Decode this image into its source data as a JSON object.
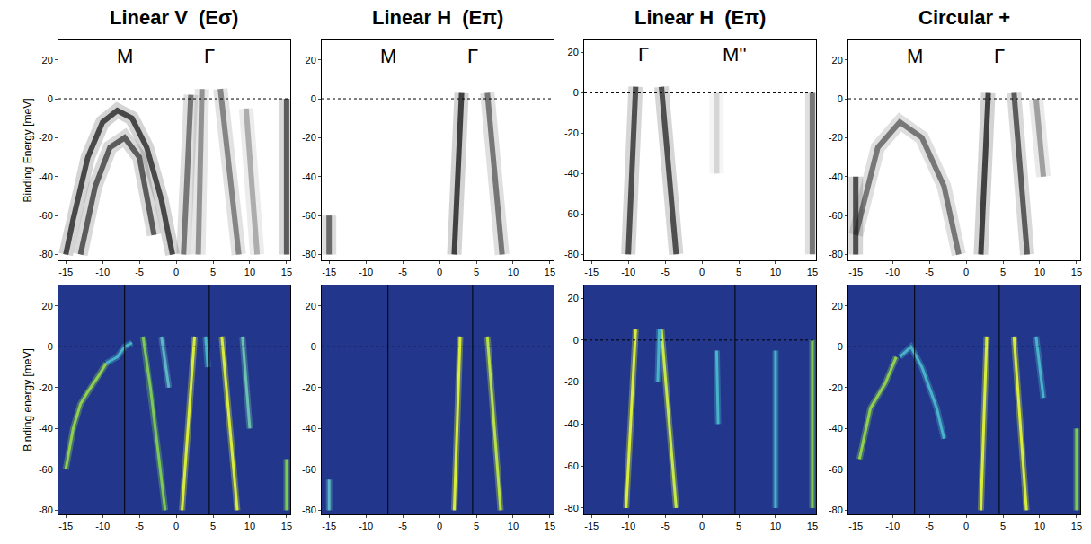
{
  "chart_data": [
    {
      "type": "intensity",
      "title": "Linear V  (Eσ)",
      "y_label": "Binding Energy [meV]",
      "xlim": [
        -16,
        15.5
      ],
      "xticks": [
        -15,
        -10,
        -5,
        0,
        5,
        10,
        15
      ],
      "ylim": [
        -83,
        30
      ],
      "yticks": [
        -80,
        -60,
        -40,
        -20,
        0,
        20
      ],
      "grid": false,
      "hlines": [
        0
      ],
      "annotations": [
        {
          "text": "M",
          "x": -7,
          "y": 22
        },
        {
          "text": "Γ",
          "x": 4.5,
          "y": 22
        }
      ],
      "bands": [
        {
          "x": [
            -15,
            -14,
            -12,
            -10,
            -8,
            -6,
            -4,
            -2,
            -0.5
          ],
          "y": [
            -80,
            -62,
            -30,
            -12,
            -6,
            -10,
            -25,
            -52,
            -80
          ],
          "color": "#1a1a1a"
        },
        {
          "x": [
            -13,
            -11,
            -9,
            -7,
            -5,
            -3
          ],
          "y": [
            -80,
            -45,
            -25,
            -20,
            -30,
            -70
          ],
          "color": "#333333"
        },
        {
          "x": [
            1,
            2
          ],
          "y": [
            -80,
            2
          ],
          "color": "#555555"
        },
        {
          "x": [
            3,
            3.5
          ],
          "y": [
            -80,
            5
          ],
          "color": "#777777"
        },
        {
          "x": [
            6,
            8.5
          ],
          "y": [
            5,
            -80
          ],
          "color": "#666666"
        },
        {
          "x": [
            9.5,
            11
          ],
          "y": [
            -5,
            -80
          ],
          "color": "#999999"
        },
        {
          "x": [
            15,
            15
          ],
          "y": [
            -80,
            0
          ],
          "color": "#333333"
        }
      ]
    },
    {
      "type": "intensity",
      "title": "Linear H  (Eπ)",
      "xlim": [
        -16,
        15.5
      ],
      "xticks": [
        -15,
        -10,
        -5,
        0,
        5,
        10,
        15
      ],
      "ylim": [
        -83,
        30
      ],
      "yticks": [
        -80,
        -60,
        -40,
        -20,
        0,
        20
      ],
      "grid": false,
      "hlines": [
        0
      ],
      "annotations": [
        {
          "text": "M",
          "x": -7,
          "y": 22
        },
        {
          "text": "Γ",
          "x": 4.5,
          "y": 22
        }
      ],
      "bands": [
        {
          "x": [
            2,
            3
          ],
          "y": [
            -80,
            3
          ],
          "color": "#111111"
        },
        {
          "x": [
            8.5,
            6.5
          ],
          "y": [
            -80,
            3
          ],
          "color": "#555555"
        },
        {
          "x": [
            -15,
            -15
          ],
          "y": [
            -80,
            -60
          ],
          "color": "#444444"
        }
      ]
    },
    {
      "type": "intensity",
      "title": "Linear H  (Eπ)",
      "xlim": [
        -16,
        15.5
      ],
      "xticks": [
        -15,
        -10,
        -5,
        0,
        5,
        10,
        15
      ],
      "ylim": [
        -83,
        26
      ],
      "yticks": [
        -80,
        -60,
        -40,
        -20,
        0,
        20
      ],
      "grid": false,
      "hlines": [
        0
      ],
      "annotations": [
        {
          "text": "Γ",
          "x": -8,
          "y": 19
        },
        {
          "text": "M''",
          "x": 4.5,
          "y": 19
        }
      ],
      "bands": [
        {
          "x": [
            -10,
            -9
          ],
          "y": [
            -80,
            3
          ],
          "color": "#222222"
        },
        {
          "x": [
            -3.5,
            -5.5
          ],
          "y": [
            -80,
            3
          ],
          "color": "#222222"
        },
        {
          "x": [
            15,
            15
          ],
          "y": [
            -80,
            0
          ],
          "color": "#555555"
        },
        {
          "x": [
            2,
            2
          ],
          "y": [
            -40,
            0
          ],
          "color": "#cccccc"
        }
      ]
    },
    {
      "type": "intensity",
      "title": "Circular +",
      "xlim": [
        -16,
        15.5
      ],
      "xticks": [
        -15,
        -10,
        -5,
        0,
        5,
        10,
        15
      ],
      "ylim": [
        -83,
        30
      ],
      "yticks": [
        -80,
        -60,
        -40,
        -20,
        0,
        20
      ],
      "grid": false,
      "hlines": [
        0
      ],
      "annotations": [
        {
          "text": "M",
          "x": -7,
          "y": 22
        },
        {
          "text": "Γ",
          "x": 4.5,
          "y": 22
        }
      ],
      "bands": [
        {
          "x": [
            -15,
            -12,
            -9,
            -6,
            -3,
            -1
          ],
          "y": [
            -70,
            -25,
            -12,
            -20,
            -45,
            -80
          ],
          "color": "#555555"
        },
        {
          "x": [
            2,
            3
          ],
          "y": [
            -80,
            3
          ],
          "color": "#111111"
        },
        {
          "x": [
            8.3,
            6.5
          ],
          "y": [
            -80,
            3
          ],
          "color": "#333333"
        },
        {
          "x": [
            -15,
            -15
          ],
          "y": [
            -80,
            -40
          ],
          "color": "#222222"
        },
        {
          "x": [
            9.5,
            10.5
          ],
          "y": [
            0,
            -40
          ],
          "color": "#888888"
        }
      ]
    },
    {
      "type": "curvature",
      "y_label": "Binding energy [meV]",
      "xlim": [
        -16,
        15.5
      ],
      "xticks": [
        -15,
        -10,
        -5,
        0,
        5,
        10,
        15
      ],
      "ylim": [
        -82,
        30
      ],
      "yticks": [
        -80,
        -60,
        -40,
        -20,
        0,
        20
      ],
      "grid": false,
      "hlines": [
        0
      ],
      "vlines": [
        -7,
        4.5
      ],
      "bands": [
        {
          "x": [
            -15,
            -14,
            -13,
            -12,
            -10.5,
            -9.5
          ],
          "y": [
            -60,
            -40,
            -28,
            -22,
            -14,
            -8
          ],
          "color": "#8fd14f"
        },
        {
          "x": [
            -9.5,
            -8,
            -7,
            -6
          ],
          "y": [
            -8,
            -5,
            0,
            2
          ],
          "color": "#49b3c9"
        },
        {
          "x": [
            -4.5,
            -3.5,
            -2.5,
            -1.5
          ],
          "y": [
            5,
            -20,
            -50,
            -80
          ],
          "color": "#7cc958"
        },
        {
          "x": [
            -2,
            -1
          ],
          "y": [
            5,
            -20
          ],
          "color": "#5fb6c7"
        },
        {
          "x": [
            0.8,
            2.5
          ],
          "y": [
            -80,
            5
          ],
          "color": "#d8ec3c"
        },
        {
          "x": [
            4,
            4.3
          ],
          "y": [
            5,
            -10
          ],
          "color": "#49b3c9"
        },
        {
          "x": [
            6.2,
            8.3
          ],
          "y": [
            5,
            -80
          ],
          "color": "#d8ec3c"
        },
        {
          "x": [
            9,
            10
          ],
          "y": [
            5,
            -40
          ],
          "color": "#6cc0b0"
        },
        {
          "x": [
            15,
            15
          ],
          "y": [
            -80,
            -55
          ],
          "color": "#7cc958"
        }
      ]
    },
    {
      "type": "curvature",
      "xlim": [
        -16,
        15.5
      ],
      "xticks": [
        -15,
        -10,
        -5,
        0,
        5,
        10,
        15
      ],
      "ylim": [
        -82,
        30
      ],
      "yticks": [
        -80,
        -60,
        -40,
        -20,
        0,
        20
      ],
      "grid": false,
      "hlines": [
        0
      ],
      "vlines": [
        -7,
        4.5
      ],
      "bands": [
        {
          "x": [
            2,
            2.8
          ],
          "y": [
            -80,
            5
          ],
          "color": "#d8ec3c"
        },
        {
          "x": [
            8.3,
            6.5
          ],
          "y": [
            -80,
            5
          ],
          "color": "#b8e04a"
        },
        {
          "x": [
            -15,
            -15
          ],
          "y": [
            -80,
            -65
          ],
          "color": "#5fb6c7"
        }
      ]
    },
    {
      "type": "curvature",
      "xlim": [
        -16,
        15.5
      ],
      "xticks": [
        -15,
        -10,
        -5,
        0,
        5,
        10,
        15
      ],
      "ylim": [
        -83,
        26
      ],
      "yticks": [
        -80,
        -60,
        -40,
        -20,
        0,
        20
      ],
      "grid": false,
      "hlines": [
        0
      ],
      "vlines": [
        -8,
        4.5
      ],
      "bands": [
        {
          "x": [
            -10.3,
            -9
          ],
          "y": [
            -80,
            5
          ],
          "color": "#d8ec3c"
        },
        {
          "x": [
            -3.5,
            -5.5
          ],
          "y": [
            -80,
            5
          ],
          "color": "#c6e84a"
        },
        {
          "x": [
            -5.8,
            -6
          ],
          "y": [
            5,
            -20
          ],
          "color": "#49b3c9"
        },
        {
          "x": [
            2,
            2.2
          ],
          "y": [
            -5,
            -40
          ],
          "color": "#49b3c9"
        },
        {
          "x": [
            10,
            10
          ],
          "y": [
            -5,
            -80
          ],
          "color": "#49b3c9"
        },
        {
          "x": [
            15,
            15
          ],
          "y": [
            -80,
            0
          ],
          "color": "#7cc958"
        }
      ]
    },
    {
      "type": "curvature",
      "xlim": [
        -16,
        15.5
      ],
      "xticks": [
        -15,
        -10,
        -5,
        0,
        5,
        10,
        15
      ],
      "ylim": [
        -82,
        30
      ],
      "yticks": [
        -80,
        -60,
        -40,
        -20,
        0,
        20
      ],
      "grid": false,
      "hlines": [
        0
      ],
      "vlines": [
        -7,
        4.5
      ],
      "bands": [
        {
          "x": [
            -14.5,
            -13,
            -11,
            -9.5
          ],
          "y": [
            -55,
            -30,
            -18,
            -5
          ],
          "color": "#8fd14f"
        },
        {
          "x": [
            -9,
            -7.5,
            -6,
            -4,
            -3
          ],
          "y": [
            -5,
            0,
            -10,
            -30,
            -45
          ],
          "color": "#49b3c9"
        },
        {
          "x": [
            2,
            2.8
          ],
          "y": [
            -80,
            5
          ],
          "color": "#d8ec3c"
        },
        {
          "x": [
            8.2,
            6.5
          ],
          "y": [
            -80,
            5
          ],
          "color": "#d8ec3c"
        },
        {
          "x": [
            9.5,
            10.5
          ],
          "y": [
            5,
            -25
          ],
          "color": "#49b3c9"
        },
        {
          "x": [
            15,
            15
          ],
          "y": [
            -80,
            -40
          ],
          "color": "#7cc958"
        }
      ]
    }
  ]
}
